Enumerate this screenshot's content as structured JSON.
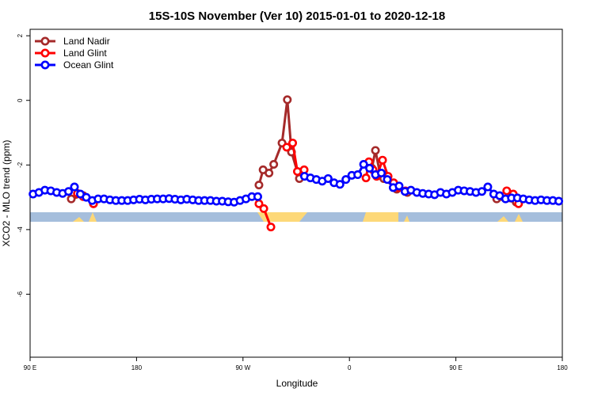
{
  "chart_data": {
    "type": "line",
    "title": "15S-10S November (Ver 10)   2015-01-01 to 2020-12-18",
    "x_label": "Longitude",
    "y_label": "XCO2 - MLO trend (ppm)",
    "xlim": [
      90,
      540
    ],
    "ylim": [
      -7.95,
      2.2
    ],
    "xticks": [
      {
        "value": 90,
        "label": "90 E"
      },
      {
        "value": 180,
        "label": "180"
      },
      {
        "value": 270,
        "label": "90 W"
      },
      {
        "value": 360,
        "label": "0"
      },
      {
        "value": 450,
        "label": "90 E"
      },
      {
        "value": 540,
        "label": "180"
      }
    ],
    "yticks": [
      2,
      0,
      -2,
      -4,
      -6
    ],
    "legend": "top-left",
    "series": [
      {
        "name": "Land Nadir",
        "color": "#a52a2a",
        "x": [
          124.8,
          134.9,
          143.6,
          null,
          283.5,
          287,
          292,
          296,
          303,
          307.5,
          311,
          317.7,
          null,
          379,
          382,
          386,
          389,
          400,
          409,
          null,
          484.5,
          501
        ],
        "values": [
          -3.05,
          -2.95,
          -3.2,
          null,
          -2.62,
          -2.15,
          -2.25,
          -1.98,
          -1.32,
          0.02,
          -1.6,
          -2.42,
          null,
          -2.1,
          -1.55,
          -2.3,
          -2.42,
          -2.75,
          -2.85,
          null,
          -3.05,
          -3.15
        ]
      },
      {
        "name": "Land Glint",
        "color": "#ff0000",
        "x": [
          130,
          134.9,
          143.6,
          null,
          283.5,
          287.6,
          293.6,
          null,
          307,
          312,
          316,
          321.7,
          null,
          374,
          376.5,
          380,
          383,
          388,
          392.7,
          397.4,
          401.4,
          407.4,
          null,
          493,
          498.5,
          503
        ],
        "values": [
          -2.88,
          -2.98,
          -3.2,
          null,
          -3.2,
          -3.35,
          -3.92,
          null,
          -1.45,
          -1.32,
          -2.2,
          -2.15,
          null,
          -2.4,
          -1.9,
          -2.15,
          -2.35,
          -1.85,
          -2.35,
          -2.55,
          -2.7,
          -2.8,
          null,
          -2.8,
          -2.9,
          -3.2
        ]
      },
      {
        "name": "Ocean Glint",
        "color": "#0000ff",
        "x": [
          92.5,
          97.5,
          102.5,
          107.5,
          112.5,
          117.5,
          122.5,
          127.5,
          132.5,
          137.5,
          142.5,
          147.5,
          152.5,
          157.5,
          162.5,
          167.5,
          172.5,
          177.5,
          182.5,
          187.5,
          192.5,
          197.5,
          202.5,
          207.5,
          212.5,
          217.5,
          222.5,
          227.5,
          232.5,
          237.5,
          242.5,
          247.5,
          252.5,
          257.5,
          262.5,
          267.5,
          272.5,
          277.5,
          282.5,
          null,
          322,
          327,
          332,
          337,
          342,
          347,
          352,
          357,
          362,
          367,
          372,
          377,
          382,
          387,
          392,
          397,
          402,
          407,
          412,
          417,
          422,
          427,
          432,
          437,
          442,
          447,
          452,
          457,
          462,
          467,
          472,
          477,
          482,
          487,
          492,
          497,
          502,
          507,
          512,
          517,
          522,
          527,
          532,
          537
        ],
        "values": [
          -2.9,
          -2.85,
          -2.78,
          -2.8,
          -2.85,
          -2.88,
          -2.82,
          -2.68,
          -2.9,
          -3.0,
          -3.1,
          -3.05,
          -3.05,
          -3.08,
          -3.1,
          -3.1,
          -3.1,
          -3.08,
          -3.06,
          -3.08,
          -3.06,
          -3.05,
          -3.05,
          -3.04,
          -3.06,
          -3.08,
          -3.06,
          -3.08,
          -3.1,
          -3.1,
          -3.1,
          -3.12,
          -3.12,
          -3.14,
          -3.15,
          -3.1,
          -3.05,
          -2.98,
          -2.98,
          null,
          -2.35,
          -2.4,
          -2.45,
          -2.5,
          -2.42,
          -2.55,
          -2.6,
          -2.45,
          -2.32,
          -2.3,
          -1.98,
          -2.1,
          -2.3,
          -2.25,
          -2.45,
          -2.7,
          -2.65,
          -2.82,
          -2.78,
          -2.85,
          -2.88,
          -2.9,
          -2.92,
          -2.85,
          -2.9,
          -2.85,
          -2.78,
          -2.8,
          -2.82,
          -2.85,
          -2.82,
          -2.68,
          -2.9,
          -2.95,
          -3.05,
          -3.02,
          -3.02,
          -3.05,
          -3.08,
          -3.1,
          -3.08,
          -3.1,
          -3.1,
          -3.12
        ]
      }
    ]
  }
}
